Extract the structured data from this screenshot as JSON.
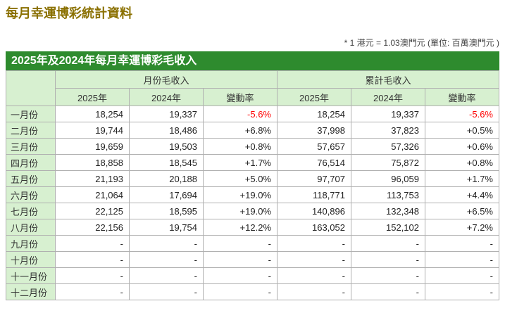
{
  "page": {
    "title": "每月幸運博彩統計資料",
    "unit_note": "* 1 港元 = 1.03澳門元 (單位: 百萬澳門元 )"
  },
  "colors": {
    "title_brown": "#8a7000",
    "banner_green": "#2e8b2e",
    "header_light_green": "#d7f0d0",
    "negative_change": "#ff0000"
  },
  "table": {
    "caption": "2025年及2024年每月幸運博彩毛收入",
    "group_headers": {
      "monthly": "月份毛收入",
      "cumulative": "累計毛收入"
    },
    "sub_headers": {
      "y2025": "2025年",
      "y2024": "2024年",
      "change": "變動率"
    },
    "rows": [
      {
        "month": "一月份",
        "monthly_2025": "18,254",
        "monthly_2024": "19,337",
        "monthly_change": "-5.6%",
        "cumulative_2025": "18,254",
        "cumulative_2024": "19,337",
        "cumulative_change": "-5.6%"
      },
      {
        "month": "二月份",
        "monthly_2025": "19,744",
        "monthly_2024": "18,486",
        "monthly_change": "+6.8%",
        "cumulative_2025": "37,998",
        "cumulative_2024": "37,823",
        "cumulative_change": "+0.5%"
      },
      {
        "month": "三月份",
        "monthly_2025": "19,659",
        "monthly_2024": "19,503",
        "monthly_change": "+0.8%",
        "cumulative_2025": "57,657",
        "cumulative_2024": "57,326",
        "cumulative_change": "+0.6%"
      },
      {
        "month": "四月份",
        "monthly_2025": "18,858",
        "monthly_2024": "18,545",
        "monthly_change": "+1.7%",
        "cumulative_2025": "76,514",
        "cumulative_2024": "75,872",
        "cumulative_change": "+0.8%"
      },
      {
        "month": "五月份",
        "monthly_2025": "21,193",
        "monthly_2024": "20,188",
        "monthly_change": "+5.0%",
        "cumulative_2025": "97,707",
        "cumulative_2024": "96,059",
        "cumulative_change": "+1.7%"
      },
      {
        "month": "六月份",
        "monthly_2025": "21,064",
        "monthly_2024": "17,694",
        "monthly_change": "+19.0%",
        "cumulative_2025": "118,771",
        "cumulative_2024": "113,753",
        "cumulative_change": "+4.4%"
      },
      {
        "month": "七月份",
        "monthly_2025": "22,125",
        "monthly_2024": "18,595",
        "monthly_change": "+19.0%",
        "cumulative_2025": "140,896",
        "cumulative_2024": "132,348",
        "cumulative_change": "+6.5%"
      },
      {
        "month": "八月份",
        "monthly_2025": "22,156",
        "monthly_2024": "19,754",
        "monthly_change": "+12.2%",
        "cumulative_2025": "163,052",
        "cumulative_2024": "152,102",
        "cumulative_change": "+7.2%"
      },
      {
        "month": "九月份",
        "monthly_2025": "-",
        "monthly_2024": "-",
        "monthly_change": "-",
        "cumulative_2025": "-",
        "cumulative_2024": "-",
        "cumulative_change": "-"
      },
      {
        "month": "十月份",
        "monthly_2025": "-",
        "monthly_2024": "-",
        "monthly_change": "-",
        "cumulative_2025": "-",
        "cumulative_2024": "-",
        "cumulative_change": "-"
      },
      {
        "month": "十一月份",
        "monthly_2025": "-",
        "monthly_2024": "-",
        "monthly_change": "-",
        "cumulative_2025": "-",
        "cumulative_2024": "-",
        "cumulative_change": "-"
      },
      {
        "month": "十二月份",
        "monthly_2025": "-",
        "monthly_2024": "-",
        "monthly_change": "-",
        "cumulative_2025": "-",
        "cumulative_2024": "-",
        "cumulative_change": "-"
      }
    ]
  }
}
